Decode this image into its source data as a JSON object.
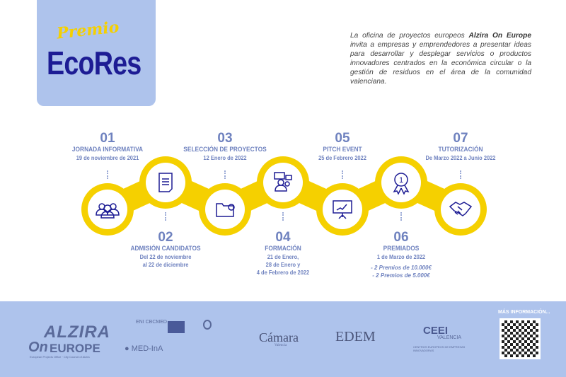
{
  "logo": {
    "premio": "Premio",
    "ecores": "EcoRes"
  },
  "intro": {
    "pre": "La oficina de proyectos europeos ",
    "bold": "Alzira On Europe",
    "post": " invita a empresas y emprendedores a presentar ideas para desarrollar y desplegar servicios o productos innovadores centrados en la económica circular o la gestión de residuos en el área de la comunidad valenciana."
  },
  "steps": [
    {
      "num": "01",
      "title": "JORNADA INFORMATIVA",
      "sub": [
        "19 de noviembre de 2021"
      ],
      "icon": "group-icon"
    },
    {
      "num": "02",
      "title": "ADMISIÓN CANDIDATOS",
      "sub": [
        "Del 22 de noviembre",
        "al 22 de diciembre"
      ],
      "icon": "document-icon"
    },
    {
      "num": "03",
      "title": "SELECCIÓN DE PROYECTOS",
      "sub": [
        "12 Enero de 2022"
      ],
      "icon": "folder-check-icon"
    },
    {
      "num": "04",
      "title": "FORMACIÓN",
      "sub": [
        "21 de Enero,",
        "28 de Enero y",
        "4 de Febrero de 2022"
      ],
      "icon": "training-icon"
    },
    {
      "num": "05",
      "title": "PITCH EVENT",
      "sub": [
        "25 de Febrero 2022"
      ],
      "icon": "presentation-icon"
    },
    {
      "num": "06",
      "title": "PREMIADOS",
      "sub": [
        "1 de Marzo de 2022"
      ],
      "prizes": [
        "- 2 Premios de 10.000€",
        "- 2 Premios de 5.000€"
      ],
      "icon": "award-icon"
    },
    {
      "num": "07",
      "title": "TUTORIZACIÓN",
      "sub": [
        "De Marzo 2022 a Junio 2022"
      ],
      "icon": "handshake-icon"
    }
  ],
  "colors": {
    "yellow": "#f5d000",
    "blue_text": "#6f82bf",
    "navy": "#1d1c94",
    "footer": "#aec3ec"
  },
  "footer": {
    "alzira": "ALZIRA",
    "on": "On",
    "europe": "EUROPE",
    "alzira_sub": "European Projects Office · City Council of Alzira",
    "eni": "ENI CBCMED",
    "medinA": "MED-InA",
    "camara": "Cámara",
    "camara_sub": "Valencia",
    "edem": "EDEM",
    "ceei": "CEEI",
    "ceei_city": "VALENCIA",
    "ceei_sub": "CENTROS EUROPEOS DE EMPRESAS INNOVADORAS",
    "more_info": "MÁS INFORMACIÓN..."
  }
}
